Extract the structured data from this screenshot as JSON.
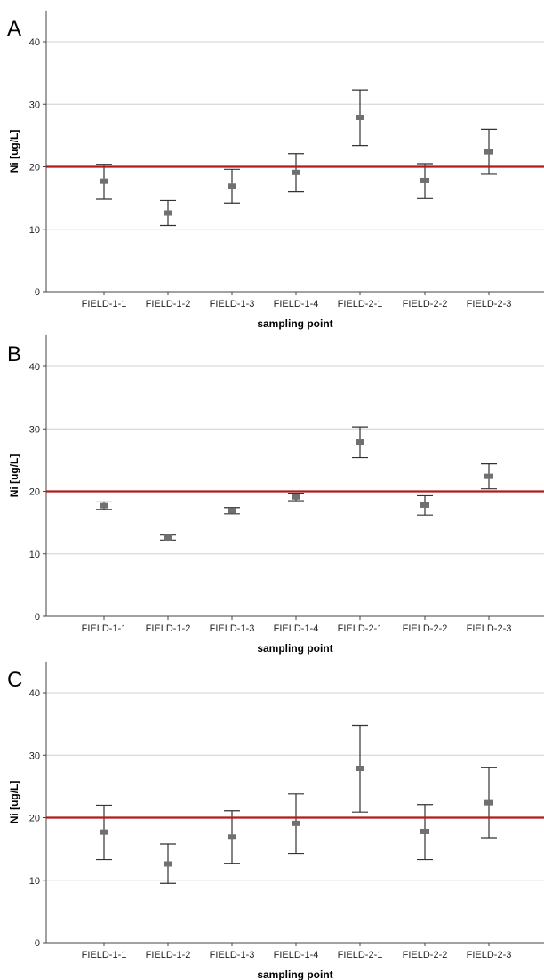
{
  "chart_data": [
    {
      "type": "errorbar",
      "panel": "A",
      "categories": [
        "FIELD-1-1",
        "FIELD-1-2",
        "FIELD-1-3",
        "FIELD-1-4",
        "FIELD-2-1",
        "FIELD-2-2",
        "FIELD-2-3"
      ],
      "mean": [
        17.7,
        12.6,
        16.9,
        19.1,
        27.9,
        17.8,
        22.4
      ],
      "lower": [
        14.8,
        10.6,
        14.2,
        16.0,
        23.4,
        14.9,
        18.8
      ],
      "upper": [
        20.4,
        14.6,
        19.6,
        22.1,
        32.3,
        20.5,
        26.0
      ],
      "reference_line": 20,
      "xlabel": "sampling point",
      "ylabel": "Ni [ug/L]",
      "yticks": [
        0,
        10,
        20,
        30,
        40
      ],
      "ylim": [
        0,
        45
      ],
      "grid": true
    },
    {
      "type": "errorbar",
      "panel": "B",
      "categories": [
        "FIELD-1-1",
        "FIELD-1-2",
        "FIELD-1-3",
        "FIELD-1-4",
        "FIELD-2-1",
        "FIELD-2-2",
        "FIELD-2-3"
      ],
      "mean": [
        17.7,
        12.6,
        16.9,
        19.1,
        27.9,
        17.8,
        22.4
      ],
      "lower": [
        17.1,
        12.2,
        16.4,
        18.5,
        25.4,
        16.2,
        20.4
      ],
      "upper": [
        18.3,
        13.0,
        17.4,
        19.7,
        30.3,
        19.3,
        24.4
      ],
      "reference_line": 20,
      "xlabel": "sampling point",
      "ylabel": "Ni [ug/L]",
      "yticks": [
        0,
        10,
        20,
        30,
        40
      ],
      "ylim": [
        0,
        45
      ],
      "grid": true
    },
    {
      "type": "errorbar",
      "panel": "C",
      "categories": [
        "FIELD-1-1",
        "FIELD-1-2",
        "FIELD-1-3",
        "FIELD-1-4",
        "FIELD-2-1",
        "FIELD-2-2",
        "FIELD-2-3"
      ],
      "mean": [
        17.7,
        12.6,
        16.9,
        19.1,
        27.9,
        17.8,
        22.4
      ],
      "lower": [
        13.3,
        9.5,
        12.7,
        14.3,
        20.9,
        13.3,
        16.8
      ],
      "upper": [
        22.0,
        15.8,
        21.1,
        23.8,
        34.8,
        22.1,
        28.0
      ],
      "reference_line": 20,
      "xlabel": "sampling point",
      "ylabel": "Ni [ug/L]",
      "yticks": [
        0,
        10,
        20,
        30,
        40
      ],
      "ylim": [
        0,
        45
      ],
      "grid": true
    }
  ],
  "colors": {
    "reference_line": "#b01c1c",
    "marker": "#707070",
    "whisker": "#333333",
    "grid": "#d0d0d0",
    "axis": "#444444"
  }
}
